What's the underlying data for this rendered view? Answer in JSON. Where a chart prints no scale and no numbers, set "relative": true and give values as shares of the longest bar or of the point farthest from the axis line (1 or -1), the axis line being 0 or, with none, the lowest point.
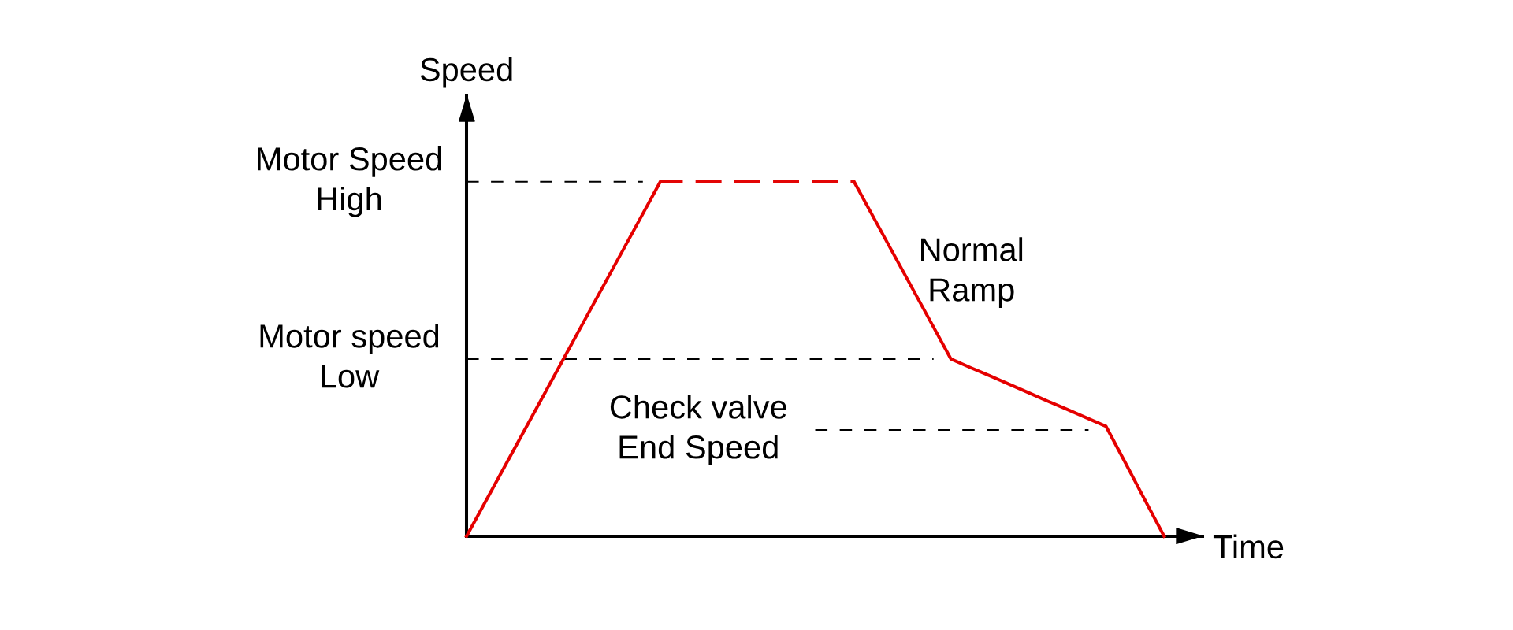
{
  "chart_data": {
    "type": "line",
    "relative": true,
    "xlabel": "Time",
    "ylabel": "Speed",
    "categories": [
      null,
      null,
      null,
      null,
      null,
      null,
      null,
      null,
      null,
      null,
      null,
      null,
      null,
      null,
      null,
      null,
      null,
      null,
      null,
      null,
      null,
      null,
      null,
      null,
      null,
      null,
      null,
      null,
      null,
      null,
      null,
      null,
      null,
      null,
      null,
      null,
      null
    ],
    "series": [
      {
        "color": "#e50000",
        "line_style": "solid",
        "values": [
          0,
          0.1,
          0.2,
          0.3,
          0.4,
          0.5,
          0.6,
          0.7,
          0.8,
          0.9,
          1,
          null,
          null,
          null,
          null,
          null,
          null,
          null,
          null,
          null,
          1,
          0.9,
          0.8,
          0.7,
          0.6,
          0.5,
          0.476,
          0.453,
          0.429,
          0.405,
          0.381,
          0.358,
          0.334,
          0.31,
          0.207,
          0.103,
          0
        ]
      },
      {
        "color": "#e30505",
        "line_style": "dashed",
        "values": [
          null,
          null,
          null,
          null,
          null,
          null,
          null,
          null,
          null,
          null,
          1,
          1,
          1,
          1,
          1,
          1,
          1,
          1,
          1,
          1,
          1,
          null,
          null,
          null,
          null,
          null,
          null,
          null,
          null,
          null,
          null,
          null,
          null,
          null,
          null,
          null,
          null
        ]
      }
    ],
    "ref_lines": [
      {
        "axis": "y",
        "value": 1,
        "label": "Motor Speed\nHigh",
        "color": "#000000",
        "line_style": "dashed"
      },
      {
        "axis": "y",
        "value": 0.5,
        "label": "Motor speed\nLow",
        "color": "#000000",
        "line_style": "dashed"
      },
      {
        "axis": "y",
        "value": 0.3,
        "label": "Check valve\nEnd Speed",
        "color": "#000000",
        "line_style": "dashed"
      }
    ],
    "annotations": [
      "Normal\nRamp"
    ],
    "grid": false
  }
}
